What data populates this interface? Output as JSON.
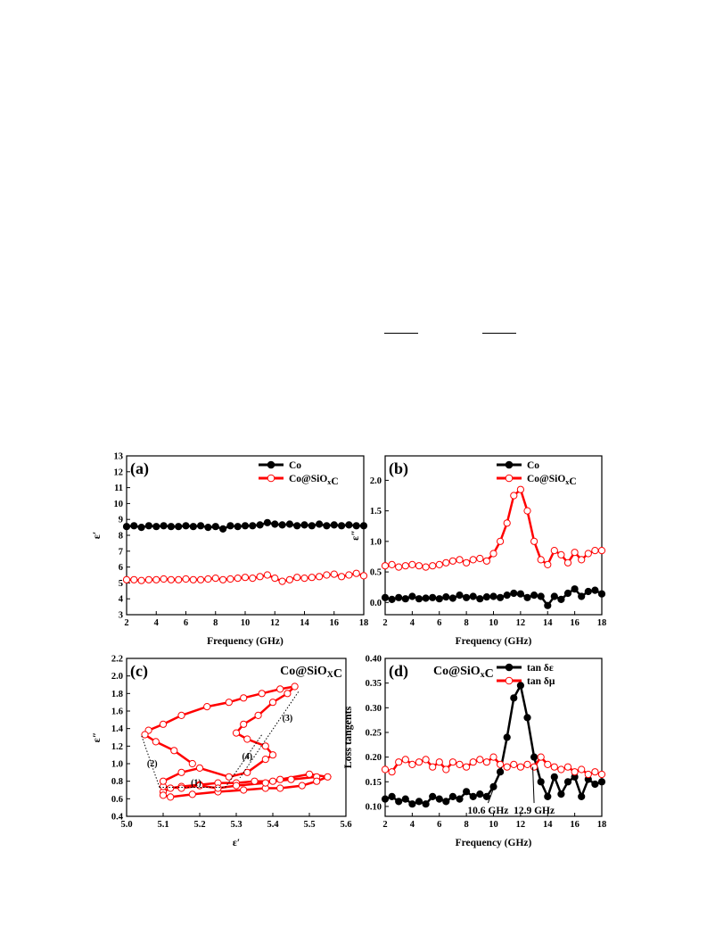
{
  "colors": {
    "series_black": "#000000",
    "series_red": "#ff0000",
    "marker_white": "#ffffff"
  },
  "chart_data": [
    {
      "id": "a",
      "type": "line",
      "panel_label": "(a)",
      "xlabel": "Frequency (GHz)",
      "ylabel": "ε′",
      "xlim": [
        2,
        18
      ],
      "ylim": [
        3,
        13
      ],
      "xticks": [
        2,
        4,
        6,
        8,
        10,
        12,
        14,
        16,
        18
      ],
      "yticks": [
        3,
        4,
        5,
        6,
        7,
        8,
        9,
        10,
        11,
        12,
        13
      ],
      "legend": "top-right",
      "series": [
        {
          "name": "Co",
          "color": "#000000",
          "marker": "filled",
          "x": [
            2,
            2.5,
            3,
            3.5,
            4,
            4.5,
            5,
            5.5,
            6,
            6.5,
            7,
            7.5,
            8,
            8.5,
            9,
            9.5,
            10,
            10.5,
            11,
            11.5,
            12,
            12.5,
            13,
            13.5,
            14,
            14.5,
            15,
            15.5,
            16,
            16.5,
            17,
            17.5,
            18
          ],
          "y": [
            8.55,
            8.6,
            8.5,
            8.6,
            8.55,
            8.6,
            8.55,
            8.55,
            8.6,
            8.55,
            8.6,
            8.5,
            8.55,
            8.4,
            8.6,
            8.55,
            8.6,
            8.6,
            8.65,
            8.8,
            8.7,
            8.65,
            8.7,
            8.6,
            8.65,
            8.6,
            8.7,
            8.6,
            8.65,
            8.6,
            8.65,
            8.6,
            8.6
          ]
        },
        {
          "name": "Co@SiO_xC",
          "color": "#ff0000",
          "marker": "open",
          "x": [
            2,
            2.5,
            3,
            3.5,
            4,
            4.5,
            5,
            5.5,
            6,
            6.5,
            7,
            7.5,
            8,
            8.5,
            9,
            9.5,
            10,
            10.5,
            11,
            11.5,
            12,
            12.5,
            13,
            13.5,
            14,
            14.5,
            15,
            15.5,
            16,
            16.5,
            17,
            17.5,
            18
          ],
          "y": [
            5.2,
            5.2,
            5.15,
            5.2,
            5.2,
            5.25,
            5.2,
            5.2,
            5.25,
            5.2,
            5.2,
            5.25,
            5.3,
            5.2,
            5.25,
            5.3,
            5.35,
            5.3,
            5.4,
            5.5,
            5.3,
            5.1,
            5.2,
            5.35,
            5.3,
            5.35,
            5.4,
            5.5,
            5.55,
            5.4,
            5.5,
            5.6,
            5.45
          ]
        }
      ]
    },
    {
      "id": "b",
      "type": "line",
      "panel_label": "(b)",
      "xlabel": "Frequency (GHz)",
      "ylabel": "ε″",
      "xlim": [
        2,
        18
      ],
      "ylim": [
        -0.2,
        2.4
      ],
      "xticks": [
        2,
        4,
        6,
        8,
        10,
        12,
        14,
        16,
        18
      ],
      "yticks": [
        0.0,
        0.5,
        1.0,
        1.5,
        2.0
      ],
      "legend": "top-right",
      "series": [
        {
          "name": "Co",
          "color": "#000000",
          "marker": "filled",
          "x": [
            2,
            2.5,
            3,
            3.5,
            4,
            4.5,
            5,
            5.5,
            6,
            6.5,
            7,
            7.5,
            8,
            8.5,
            9,
            9.5,
            10,
            10.5,
            11,
            11.5,
            12,
            12.5,
            13,
            13.5,
            14,
            14.5,
            15,
            15.5,
            16,
            16.5,
            17,
            17.5,
            18
          ],
          "y": [
            0.08,
            0.05,
            0.08,
            0.06,
            0.1,
            0.06,
            0.07,
            0.08,
            0.06,
            0.09,
            0.07,
            0.12,
            0.08,
            0.1,
            0.06,
            0.09,
            0.1,
            0.08,
            0.12,
            0.15,
            0.14,
            0.08,
            0.12,
            0.1,
            -0.05,
            0.1,
            0.05,
            0.15,
            0.22,
            0.1,
            0.18,
            0.2,
            0.14
          ]
        },
        {
          "name": "Co@SiO_xC",
          "color": "#ff0000",
          "marker": "open",
          "x": [
            2,
            2.5,
            3,
            3.5,
            4,
            4.5,
            5,
            5.5,
            6,
            6.5,
            7,
            7.5,
            8,
            8.5,
            9,
            9.5,
            10,
            10.5,
            11,
            11.5,
            12,
            12.5,
            13,
            13.5,
            14,
            14.5,
            15,
            15.5,
            16,
            16.5,
            17,
            17.5,
            18
          ],
          "y": [
            0.6,
            0.62,
            0.58,
            0.6,
            0.62,
            0.6,
            0.58,
            0.6,
            0.62,
            0.65,
            0.68,
            0.7,
            0.65,
            0.7,
            0.72,
            0.68,
            0.8,
            1.0,
            1.3,
            1.75,
            1.85,
            1.5,
            1.0,
            0.7,
            0.62,
            0.85,
            0.78,
            0.65,
            0.82,
            0.7,
            0.8,
            0.85,
            0.85
          ]
        }
      ]
    },
    {
      "id": "c",
      "type": "scatter",
      "panel_label": "(c)",
      "title": "Co@SiO_XC",
      "xlabel": "ε′",
      "ylabel": "ε″",
      "xlim": [
        5.0,
        5.6
      ],
      "ylim": [
        0.4,
        2.2
      ],
      "xticks": [
        5.0,
        5.1,
        5.2,
        5.3,
        5.4,
        5.5,
        5.6
      ],
      "yticks": [
        0.4,
        0.6,
        0.8,
        1.0,
        1.2,
        1.4,
        1.6,
        1.8,
        2.0,
        2.2
      ],
      "annotations": [
        "(1)",
        "(2)",
        "(3)",
        "(4)"
      ],
      "series": [
        {
          "name": "Co@SiO_XC",
          "color": "#ff0000",
          "marker": "open",
          "x": [
            5.52,
            5.45,
            5.4,
            5.35,
            5.3,
            5.25,
            5.2,
            5.15,
            5.12,
            5.1,
            5.1,
            5.12,
            5.18,
            5.25,
            5.32,
            5.38,
            5.42,
            5.48,
            5.52,
            5.55,
            5.5,
            5.42,
            5.38,
            5.3,
            5.25,
            5.2,
            5.15,
            5.1,
            5.1,
            5.15,
            5.2,
            5.28,
            5.33,
            5.38,
            5.4,
            5.38,
            5.33,
            5.3,
            5.32,
            5.36,
            5.4,
            5.44,
            5.46,
            5.42,
            5.37,
            5.32,
            5.28,
            5.22,
            5.15,
            5.1,
            5.06,
            5.05,
            5.08,
            5.13,
            5.18
          ],
          "y": [
            0.85,
            0.82,
            0.8,
            0.8,
            0.78,
            0.78,
            0.76,
            0.74,
            0.72,
            0.68,
            0.64,
            0.62,
            0.65,
            0.68,
            0.7,
            0.72,
            0.72,
            0.75,
            0.8,
            0.85,
            0.88,
            0.82,
            0.78,
            0.75,
            0.72,
            0.75,
            0.72,
            0.74,
            0.8,
            0.9,
            0.95,
            0.85,
            0.9,
            1.05,
            1.1,
            1.2,
            1.28,
            1.35,
            1.45,
            1.55,
            1.7,
            1.8,
            1.88,
            1.85,
            1.8,
            1.75,
            1.7,
            1.65,
            1.55,
            1.45,
            1.38,
            1.33,
            1.25,
            1.15,
            1.0
          ]
        }
      ]
    },
    {
      "id": "d",
      "type": "line",
      "panel_label": "(d)",
      "title": "Co@SiO_xC",
      "xlabel": "Frequency (GHz)",
      "ylabel": "Loss tangents",
      "xlim": [
        2,
        18
      ],
      "ylim": [
        0.08,
        0.4
      ],
      "xticks": [
        2,
        4,
        6,
        8,
        10,
        12,
        14,
        16,
        18
      ],
      "yticks": [
        0.1,
        0.15,
        0.2,
        0.25,
        0.3,
        0.35,
        0.4
      ],
      "legend": "top-right",
      "annotations": [
        "10.6 GHz",
        "12.9 GHz"
      ],
      "series": [
        {
          "name": "tan δε",
          "color": "#000000",
          "marker": "filled",
          "x": [
            2,
            2.5,
            3,
            3.5,
            4,
            4.5,
            5,
            5.5,
            6,
            6.5,
            7,
            7.5,
            8,
            8.5,
            9,
            9.5,
            10,
            10.5,
            11,
            11.5,
            12,
            12.5,
            13,
            13.5,
            14,
            14.5,
            15,
            15.5,
            16,
            16.5,
            17,
            17.5,
            18
          ],
          "y": [
            0.115,
            0.12,
            0.11,
            0.115,
            0.105,
            0.11,
            0.105,
            0.12,
            0.115,
            0.11,
            0.12,
            0.115,
            0.13,
            0.12,
            0.125,
            0.12,
            0.14,
            0.17,
            0.24,
            0.32,
            0.345,
            0.28,
            0.2,
            0.15,
            0.12,
            0.16,
            0.125,
            0.15,
            0.16,
            0.12,
            0.155,
            0.145,
            0.15
          ]
        },
        {
          "name": "tan δμ",
          "color": "#ff0000",
          "marker": "open",
          "x": [
            2,
            2.5,
            3,
            3.5,
            4,
            4.5,
            5,
            5.5,
            6,
            6.5,
            7,
            7.5,
            8,
            8.5,
            9,
            9.5,
            10,
            10.5,
            11,
            11.5,
            12,
            12.5,
            13,
            13.5,
            14,
            14.5,
            15,
            15.5,
            16,
            16.5,
            17,
            17.5,
            18
          ],
          "y": [
            0.175,
            0.17,
            0.19,
            0.195,
            0.185,
            0.19,
            0.195,
            0.18,
            0.19,
            0.175,
            0.19,
            0.185,
            0.18,
            0.19,
            0.195,
            0.19,
            0.2,
            0.185,
            0.18,
            0.185,
            0.18,
            0.185,
            0.18,
            0.2,
            0.185,
            0.18,
            0.175,
            0.18,
            0.17,
            0.175,
            0.165,
            0.17,
            0.165
          ]
        }
      ]
    }
  ]
}
